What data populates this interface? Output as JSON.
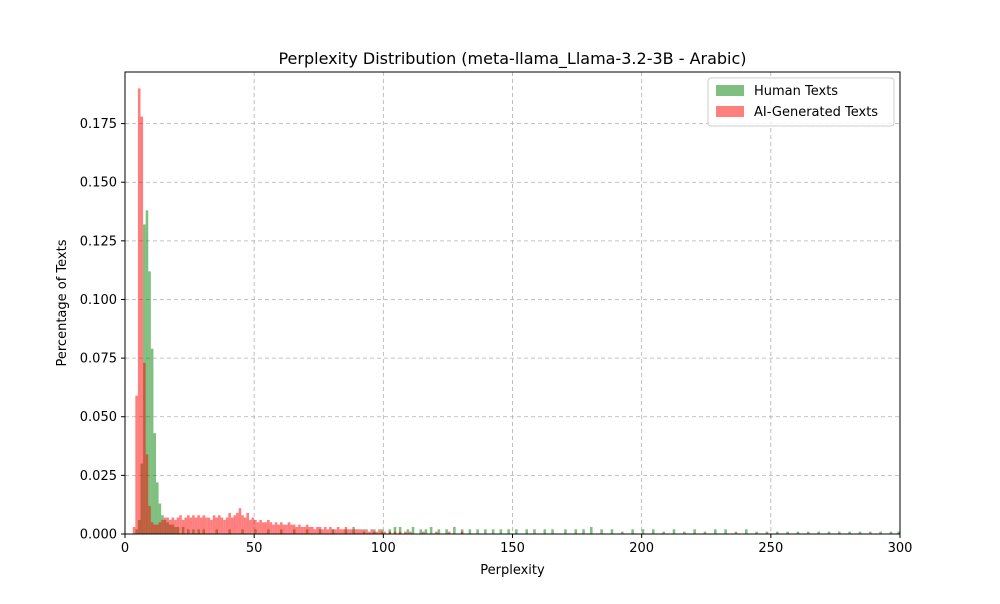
{
  "chart_data": {
    "type": "bar",
    "title": "Perplexity Distribution (meta-llama_Llama-3.2-3B - Arabic)",
    "xlabel": "Perplexity",
    "ylabel": "Percentage of Texts",
    "xlim": [
      0,
      300
    ],
    "ylim": [
      0,
      0.197
    ],
    "xticks": [
      0,
      50,
      100,
      150,
      200,
      250,
      300
    ],
    "yticks": [
      0.0,
      0.025,
      0.05,
      0.075,
      0.1,
      0.125,
      0.15,
      0.175
    ],
    "grid": true,
    "legend_position": "top-right",
    "bin_width": 1,
    "series": [
      {
        "name": "Human Texts",
        "color": "#008000",
        "opacity": 0.5,
        "bins": [
          [
            4,
            0.002
          ],
          [
            5,
            0.006
          ],
          [
            6,
            0.03
          ],
          [
            7,
            0.132
          ],
          [
            8,
            0.138
          ],
          [
            9,
            0.112
          ],
          [
            10,
            0.079
          ],
          [
            11,
            0.043
          ],
          [
            12,
            0.022
          ],
          [
            13,
            0.013
          ],
          [
            14,
            0.008
          ],
          [
            15,
            0.006
          ],
          [
            16,
            0.005
          ],
          [
            17,
            0.004
          ],
          [
            18,
            0.004
          ],
          [
            19,
            0.003
          ],
          [
            20,
            0.003
          ],
          [
            22,
            0.003
          ],
          [
            24,
            0.002
          ],
          [
            26,
            0.002
          ],
          [
            28,
            0.002
          ],
          [
            30,
            0.002
          ],
          [
            35,
            0.002
          ],
          [
            40,
            0.002
          ],
          [
            45,
            0.002
          ],
          [
            50,
            0.002
          ],
          [
            55,
            0.002
          ],
          [
            60,
            0.002
          ],
          [
            65,
            0.002
          ],
          [
            70,
            0.002
          ],
          [
            75,
            0.002
          ],
          [
            80,
            0.002
          ],
          [
            85,
            0.002
          ],
          [
            88,
            0.003
          ],
          [
            92,
            0.002
          ],
          [
            96,
            0.002
          ],
          [
            99,
            0.002
          ],
          [
            102,
            0.002
          ],
          [
            104,
            0.003
          ],
          [
            106,
            0.003
          ],
          [
            109,
            0.002
          ],
          [
            111,
            0.003
          ],
          [
            114,
            0.002
          ],
          [
            116,
            0.002
          ],
          [
            118,
            0.003
          ],
          [
            121,
            0.002
          ],
          [
            124,
            0.002
          ],
          [
            127,
            0.003
          ],
          [
            130,
            0.002
          ],
          [
            133,
            0.002
          ],
          [
            136,
            0.002
          ],
          [
            139,
            0.002
          ],
          [
            142,
            0.002
          ],
          [
            145,
            0.002
          ],
          [
            148,
            0.002
          ],
          [
            151,
            0.002
          ],
          [
            155,
            0.002
          ],
          [
            158,
            0.002
          ],
          [
            162,
            0.002
          ],
          [
            165,
            0.002
          ],
          [
            170,
            0.002
          ],
          [
            174,
            0.002
          ],
          [
            177,
            0.002
          ],
          [
            180,
            0.003
          ],
          [
            184,
            0.002
          ],
          [
            188,
            0.002
          ],
          [
            192,
            0.001
          ],
          [
            196,
            0.002
          ],
          [
            200,
            0.002
          ],
          [
            204,
            0.002
          ],
          [
            208,
            0.001
          ],
          [
            212,
            0.002
          ],
          [
            216,
            0.001
          ],
          [
            220,
            0.002
          ],
          [
            224,
            0.001
          ],
          [
            228,
            0.002
          ],
          [
            232,
            0.002
          ],
          [
            236,
            0.001
          ],
          [
            240,
            0.002
          ],
          [
            244,
            0.001
          ],
          [
            248,
            0.001
          ],
          [
            252,
            0.001
          ],
          [
            256,
            0.001
          ],
          [
            260,
            0.001
          ],
          [
            264,
            0.001
          ],
          [
            268,
            0.001
          ],
          [
            272,
            0.001
          ],
          [
            276,
            0.001
          ],
          [
            280,
            0.001
          ],
          [
            284,
            0.001
          ],
          [
            288,
            0.001
          ],
          [
            292,
            0.001
          ],
          [
            296,
            0.001
          ],
          [
            299,
            0.001
          ]
        ]
      },
      {
        "name": "AI-Generated Texts",
        "color": "#ff0000",
        "opacity": 0.5,
        "bins": [
          [
            3,
            0.003
          ],
          [
            4,
            0.059
          ],
          [
            5,
            0.19
          ],
          [
            6,
            0.178
          ],
          [
            7,
            0.073
          ],
          [
            8,
            0.034
          ],
          [
            9,
            0.012
          ],
          [
            10,
            0.005
          ],
          [
            11,
            0.004
          ],
          [
            12,
            0.004
          ],
          [
            13,
            0.005
          ],
          [
            14,
            0.006
          ],
          [
            15,
            0.007
          ],
          [
            16,
            0.007
          ],
          [
            17,
            0.006
          ],
          [
            18,
            0.007
          ],
          [
            19,
            0.006
          ],
          [
            20,
            0.007
          ],
          [
            21,
            0.008
          ],
          [
            22,
            0.006
          ],
          [
            23,
            0.007
          ],
          [
            24,
            0.008
          ],
          [
            25,
            0.007
          ],
          [
            26,
            0.008
          ],
          [
            27,
            0.007
          ],
          [
            28,
            0.008
          ],
          [
            29,
            0.007
          ],
          [
            30,
            0.008
          ],
          [
            31,
            0.007
          ],
          [
            32,
            0.007
          ],
          [
            33,
            0.006
          ],
          [
            34,
            0.008
          ],
          [
            35,
            0.007
          ],
          [
            36,
            0.008
          ],
          [
            37,
            0.007
          ],
          [
            38,
            0.006
          ],
          [
            39,
            0.007
          ],
          [
            40,
            0.009
          ],
          [
            41,
            0.007
          ],
          [
            42,
            0.008
          ],
          [
            43,
            0.009
          ],
          [
            44,
            0.011
          ],
          [
            45,
            0.008
          ],
          [
            46,
            0.007
          ],
          [
            47,
            0.009
          ],
          [
            48,
            0.006
          ],
          [
            49,
            0.007
          ],
          [
            50,
            0.006
          ],
          [
            51,
            0.005
          ],
          [
            52,
            0.006
          ],
          [
            53,
            0.005
          ],
          [
            54,
            0.005
          ],
          [
            55,
            0.006
          ],
          [
            56,
            0.005
          ],
          [
            57,
            0.004
          ],
          [
            58,
            0.005
          ],
          [
            59,
            0.004
          ],
          [
            60,
            0.005
          ],
          [
            61,
            0.004
          ],
          [
            62,
            0.004
          ],
          [
            63,
            0.005
          ],
          [
            64,
            0.004
          ],
          [
            65,
            0.004
          ],
          [
            66,
            0.003
          ],
          [
            67,
            0.004
          ],
          [
            68,
            0.003
          ],
          [
            69,
            0.003
          ],
          [
            70,
            0.004
          ],
          [
            71,
            0.003
          ],
          [
            72,
            0.003
          ],
          [
            73,
            0.002
          ],
          [
            74,
            0.003
          ],
          [
            75,
            0.003
          ],
          [
            76,
            0.002
          ],
          [
            77,
            0.003
          ],
          [
            78,
            0.002
          ],
          [
            79,
            0.003
          ],
          [
            80,
            0.002
          ],
          [
            81,
            0.002
          ],
          [
            82,
            0.003
          ],
          [
            83,
            0.002
          ],
          [
            84,
            0.002
          ],
          [
            85,
            0.003
          ],
          [
            86,
            0.002
          ],
          [
            87,
            0.002
          ],
          [
            88,
            0.002
          ],
          [
            89,
            0.002
          ],
          [
            90,
            0.002
          ],
          [
            91,
            0.002
          ],
          [
            92,
            0.001
          ],
          [
            93,
            0.002
          ],
          [
            94,
            0.001
          ],
          [
            95,
            0.002
          ],
          [
            96,
            0.001
          ],
          [
            97,
            0.001
          ],
          [
            98,
            0.002
          ],
          [
            99,
            0.001
          ],
          [
            100,
            0.001
          ],
          [
            102,
            0.001
          ],
          [
            104,
            0.001
          ],
          [
            106,
            0.001
          ],
          [
            108,
            0.001
          ],
          [
            110,
            0.001
          ],
          [
            115,
            0.001
          ],
          [
            120,
            0.001
          ],
          [
            125,
            0.001
          ],
          [
            130,
            0.001
          ]
        ]
      }
    ]
  }
}
